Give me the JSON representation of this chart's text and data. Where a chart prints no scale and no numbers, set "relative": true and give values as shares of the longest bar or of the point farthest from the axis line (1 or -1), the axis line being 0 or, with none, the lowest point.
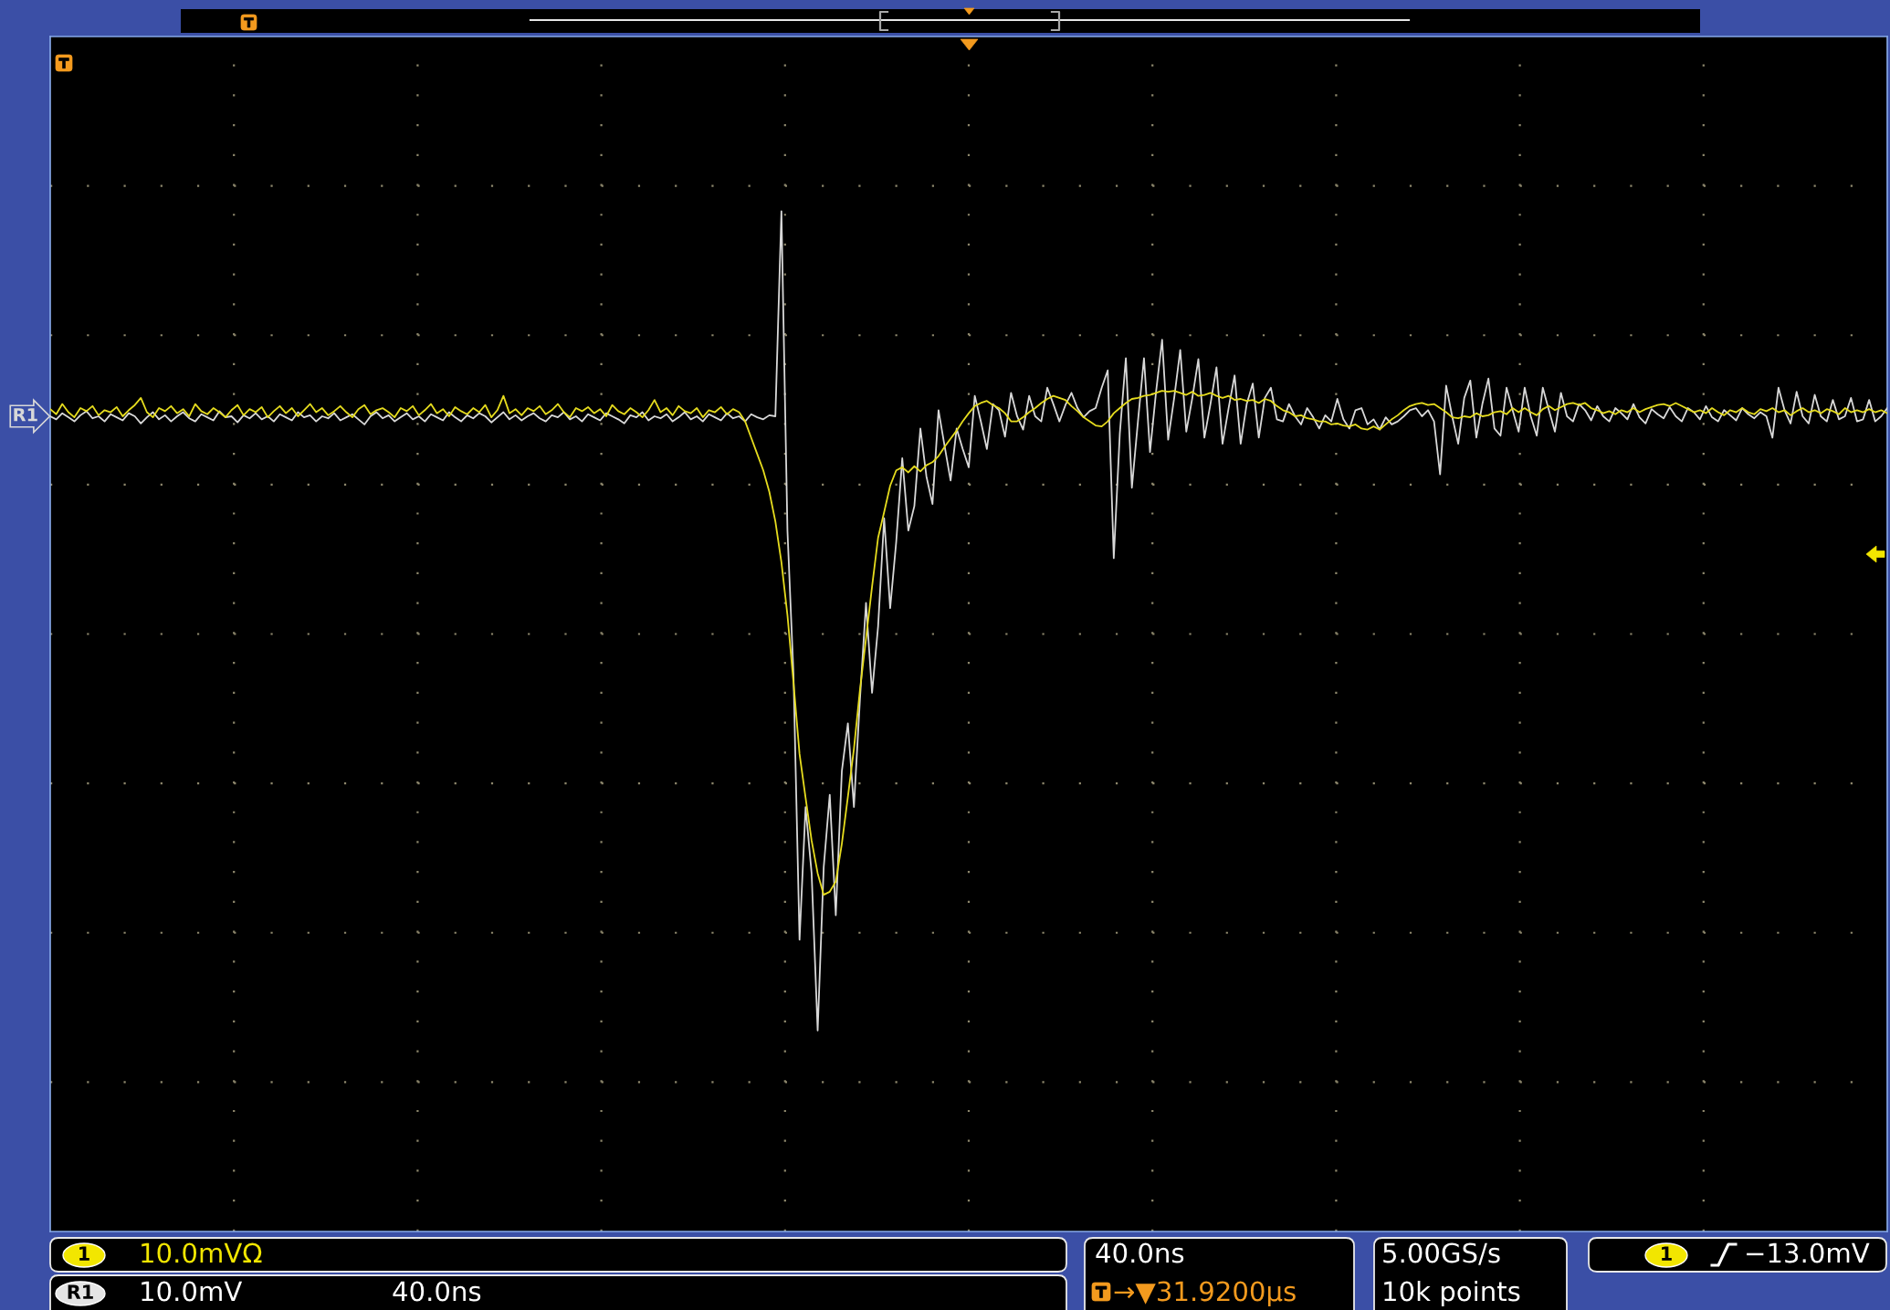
{
  "chart_data": {
    "type": "line",
    "relative": true,
    "grid": true,
    "categories": [
      null,
      null,
      null,
      null,
      null,
      null,
      null,
      null,
      null,
      null,
      null,
      null,
      null,
      null,
      null,
      null,
      null,
      null,
      null,
      null,
      null,
      null,
      null,
      null,
      null,
      null,
      null,
      null,
      null,
      null,
      null,
      null,
      null,
      null,
      null,
      null,
      null,
      null,
      null,
      null,
      null,
      null,
      null,
      null,
      null,
      null,
      null,
      null,
      null,
      null,
      null,
      null,
      null,
      null,
      null,
      null,
      null,
      null,
      null,
      null,
      null,
      null,
      null,
      null,
      null,
      null,
      null,
      null,
      null,
      null,
      null,
      null,
      null,
      null,
      null,
      null,
      null,
      null,
      null,
      null,
      null,
      null,
      null,
      null,
      null,
      null,
      null,
      null,
      null,
      null,
      null,
      null,
      null,
      null,
      null,
      null,
      null,
      null,
      null,
      null,
      null,
      null,
      null,
      null,
      null,
      null,
      null,
      null,
      null,
      null,
      null,
      null,
      null,
      null,
      null,
      null,
      null,
      null,
      null,
      null,
      null,
      null,
      null,
      null,
      null,
      null,
      null,
      null,
      null,
      null,
      null,
      null,
      null,
      null,
      null,
      null,
      null,
      null,
      null,
      null,
      null,
      null,
      null,
      null,
      null,
      null,
      null,
      null,
      null,
      null,
      null,
      null,
      null,
      null,
      null,
      null,
      null,
      null,
      null,
      null,
      null,
      null,
      null,
      null,
      null,
      null,
      null,
      null,
      null,
      null,
      null,
      null,
      null,
      null,
      null,
      null,
      null,
      null,
      null,
      null,
      null,
      null,
      null,
      null,
      null,
      null,
      null,
      null,
      null,
      null,
      null,
      null,
      null,
      null,
      null,
      null,
      null,
      null,
      null,
      null,
      null,
      null,
      null,
      null,
      null,
      null,
      null,
      null,
      null,
      null,
      null,
      null,
      null,
      null,
      null,
      null,
      null,
      null,
      null,
      null,
      null,
      null,
      null,
      null,
      null,
      null,
      null,
      null,
      null,
      null,
      null,
      null,
      null,
      null,
      null,
      null,
      null,
      null,
      null,
      null,
      null,
      null,
      null,
      null,
      null,
      null,
      null,
      null,
      null,
      null,
      null,
      null,
      null,
      null,
      null,
      null,
      null,
      null,
      null,
      null,
      null,
      null,
      null,
      null,
      null,
      null,
      null,
      null,
      null,
      null,
      null,
      null,
      null,
      null,
      null,
      null,
      null,
      null,
      null,
      null,
      null,
      null,
      null,
      null,
      null,
      null,
      null,
      null,
      null,
      null,
      null,
      null,
      null,
      null,
      null,
      null,
      null,
      null,
      null,
      null,
      null,
      null,
      null,
      null,
      null
    ],
    "series": [
      {
        "name": "R1",
        "color": "#d8d8d8",
        "values": [
          0.799,
          0.796,
          0.802,
          0.798,
          0.794,
          0.8,
          0.804,
          0.797,
          0.799,
          0.794,
          0.801,
          0.798,
          0.795,
          0.802,
          0.799,
          0.792,
          0.798,
          0.803,
          0.796,
          0.8,
          0.794,
          0.799,
          0.803,
          0.797,
          0.794,
          0.801,
          0.798,
          0.795,
          0.804,
          0.798,
          0.799,
          0.793,
          0.8,
          0.797,
          0.802,
          0.796,
          0.799,
          0.794,
          0.801,
          0.798,
          0.795,
          0.803,
          0.798,
          0.8,
          0.794,
          0.799,
          0.797,
          0.802,
          0.795,
          0.798,
          0.801,
          0.796,
          0.791,
          0.799,
          0.803,
          0.797,
          0.8,
          0.794,
          0.798,
          0.802,
          0.796,
          0.799,
          0.794,
          0.801,
          0.798,
          0.795,
          0.803,
          0.798,
          0.794,
          0.8,
          0.797,
          0.802,
          0.799,
          0.793,
          0.798,
          0.803,
          0.796,
          0.8,
          0.795,
          0.799,
          0.802,
          0.797,
          0.794,
          0.8,
          0.798,
          0.803,
          0.796,
          0.799,
          0.794,
          0.801,
          0.798,
          0.795,
          0.802,
          0.799,
          0.796,
          0.792,
          0.8,
          0.798,
          0.803,
          0.795,
          0.799,
          0.797,
          0.801,
          0.794,
          0.798,
          0.803,
          0.796,
          0.799,
          0.794,
          0.801,
          0.798,
          0.795,
          0.802,
          0.797,
          0.799,
          0.794,
          0.801,
          0.798,
          0.796,
          0.8,
          0.799,
          1.0,
          0.687,
          0.546,
          0.286,
          0.416,
          0.351,
          0.197,
          0.357,
          0.428,
          0.31,
          0.451,
          0.498,
          0.416,
          0.522,
          0.616,
          0.528,
          0.593,
          0.699,
          0.611,
          0.676,
          0.758,
          0.687,
          0.711,
          0.787,
          0.74,
          0.713,
          0.805,
          0.77,
          0.736,
          0.787,
          0.767,
          0.749,
          0.819,
          0.794,
          0.767,
          0.811,
          0.805,
          0.779,
          0.822,
          0.799,
          0.786,
          0.819,
          0.799,
          0.794,
          0.827,
          0.811,
          0.794,
          0.81,
          0.822,
          0.807,
          0.798,
          0.804,
          0.807,
          0.827,
          0.844,
          0.66,
          0.782,
          0.856,
          0.729,
          0.794,
          0.856,
          0.764,
          0.823,
          0.874,
          0.776,
          0.817,
          0.864,
          0.784,
          0.817,
          0.855,
          0.778,
          0.811,
          0.847,
          0.772,
          0.807,
          0.839,
          0.772,
          0.811,
          0.831,
          0.778,
          0.817,
          0.827,
          0.796,
          0.794,
          0.811,
          0.799,
          0.791,
          0.807,
          0.798,
          0.787,
          0.8,
          0.794,
          0.816,
          0.796,
          0.787,
          0.805,
          0.807,
          0.791,
          0.796,
          0.786,
          0.798,
          0.791,
          0.794,
          0.799,
          0.805,
          0.807,
          0.799,
          0.805,
          0.794,
          0.742,
          0.829,
          0.799,
          0.772,
          0.817,
          0.834,
          0.778,
          0.811,
          0.836,
          0.787,
          0.78,
          0.827,
          0.805,
          0.784,
          0.827,
          0.799,
          0.78,
          0.827,
          0.805,
          0.784,
          0.822,
          0.799,
          0.794,
          0.811,
          0.805,
          0.795,
          0.809,
          0.799,
          0.794,
          0.807,
          0.802,
          0.796,
          0.811,
          0.798,
          0.792,
          0.806,
          0.801,
          0.797,
          0.808,
          0.799,
          0.794,
          0.807,
          0.803,
          0.796,
          0.809,
          0.798,
          0.794,
          0.805,
          0.8,
          0.795,
          0.807,
          0.801,
          0.797,
          0.803,
          0.799,
          0.778,
          0.827,
          0.805,
          0.792,
          0.823,
          0.799,
          0.792,
          0.82,
          0.799,
          0.794,
          0.815,
          0.796,
          0.799,
          0.817,
          0.794,
          0.796,
          0.815,
          0.794,
          0.799,
          0.807
        ]
      },
      {
        "color": "#e6dc1e",
        "values": [
          0.806,
          0.801,
          0.811,
          0.803,
          0.798,
          0.807,
          0.804,
          0.809,
          0.8,
          0.805,
          0.803,
          0.808,
          0.799,
          0.805,
          0.81,
          0.817,
          0.803,
          0.798,
          0.807,
          0.804,
          0.809,
          0.802,
          0.806,
          0.799,
          0.811,
          0.804,
          0.801,
          0.807,
          0.803,
          0.798,
          0.805,
          0.81,
          0.8,
          0.806,
          0.803,
          0.808,
          0.798,
          0.804,
          0.809,
          0.802,
          0.807,
          0.799,
          0.805,
          0.811,
          0.803,
          0.807,
          0.8,
          0.804,
          0.809,
          0.803,
          0.798,
          0.806,
          0.81,
          0.801,
          0.805,
          0.807,
          0.803,
          0.798,
          0.807,
          0.804,
          0.809,
          0.8,
          0.805,
          0.811,
          0.802,
          0.806,
          0.799,
          0.808,
          0.804,
          0.801,
          0.807,
          0.803,
          0.81,
          0.798,
          0.805,
          0.819,
          0.802,
          0.806,
          0.8,
          0.807,
          0.804,
          0.809,
          0.801,
          0.805,
          0.811,
          0.803,
          0.798,
          0.807,
          0.804,
          0.808,
          0.802,
          0.806,
          0.799,
          0.81,
          0.804,
          0.801,
          0.807,
          0.803,
          0.798,
          0.805,
          0.815,
          0.803,
          0.807,
          0.8,
          0.809,
          0.804,
          0.802,
          0.807,
          0.798,
          0.805,
          0.803,
          0.808,
          0.801,
          0.806,
          0.803,
          0.794,
          0.778,
          0.762,
          0.746,
          0.725,
          0.696,
          0.656,
          0.604,
          0.538,
          0.468,
          0.425,
          0.383,
          0.351,
          0.33,
          0.333,
          0.343,
          0.38,
          0.426,
          0.473,
          0.531,
          0.581,
          0.632,
          0.68,
          0.705,
          0.731,
          0.746,
          0.749,
          0.744,
          0.75,
          0.745,
          0.751,
          0.754,
          0.76,
          0.769,
          0.777,
          0.785,
          0.794,
          0.802,
          0.809,
          0.812,
          0.814,
          0.81,
          0.807,
          0.802,
          0.794,
          0.794,
          0.798,
          0.803,
          0.807,
          0.812,
          0.816,
          0.819,
          0.817,
          0.815,
          0.809,
          0.804,
          0.798,
          0.794,
          0.79,
          0.789,
          0.794,
          0.802,
          0.807,
          0.812,
          0.816,
          0.817,
          0.819,
          0.82,
          0.822,
          0.824,
          0.823,
          0.824,
          0.822,
          0.82,
          0.823,
          0.819,
          0.82,
          0.822,
          0.819,
          0.817,
          0.819,
          0.815,
          0.816,
          0.814,
          0.815,
          0.812,
          0.816,
          0.814,
          0.809,
          0.805,
          0.803,
          0.799,
          0.8,
          0.797,
          0.796,
          0.794,
          0.794,
          0.791,
          0.792,
          0.79,
          0.789,
          0.791,
          0.787,
          0.786,
          0.789,
          0.786,
          0.791,
          0.796,
          0.8,
          0.805,
          0.809,
          0.811,
          0.812,
          0.81,
          0.811,
          0.807,
          0.803,
          0.798,
          0.797,
          0.799,
          0.798,
          0.802,
          0.799,
          0.8,
          0.803,
          0.804,
          0.801,
          0.807,
          0.803,
          0.807,
          0.803,
          0.8,
          0.806,
          0.809,
          0.805,
          0.808,
          0.811,
          0.812,
          0.81,
          0.812,
          0.807,
          0.805,
          0.802,
          0.804,
          0.801,
          0.805,
          0.803,
          0.807,
          0.803,
          0.806,
          0.808,
          0.81,
          0.811,
          0.809,
          0.812,
          0.809,
          0.806,
          0.803,
          0.805,
          0.802,
          0.807,
          0.803,
          0.8,
          0.805,
          0.803,
          0.807,
          0.803,
          0.801,
          0.806,
          0.804,
          0.807,
          0.803,
          0.805,
          0.8,
          0.804,
          0.807,
          0.803,
          0.805,
          0.802,
          0.806,
          0.804,
          0.801,
          0.807,
          0.803,
          0.805,
          0.803,
          0.806,
          0.803,
          0.805,
          0.802
        ]
      }
    ],
    "annotations": [
      "1",
      "10.0mVΩ",
      "R1",
      "10.0mV",
      "40.0ns",
      "40.0ns",
      "→▼31.9200µs",
      "5.00GS/s",
      "10k points",
      "1",
      "−13.0mV"
    ]
  }
}
